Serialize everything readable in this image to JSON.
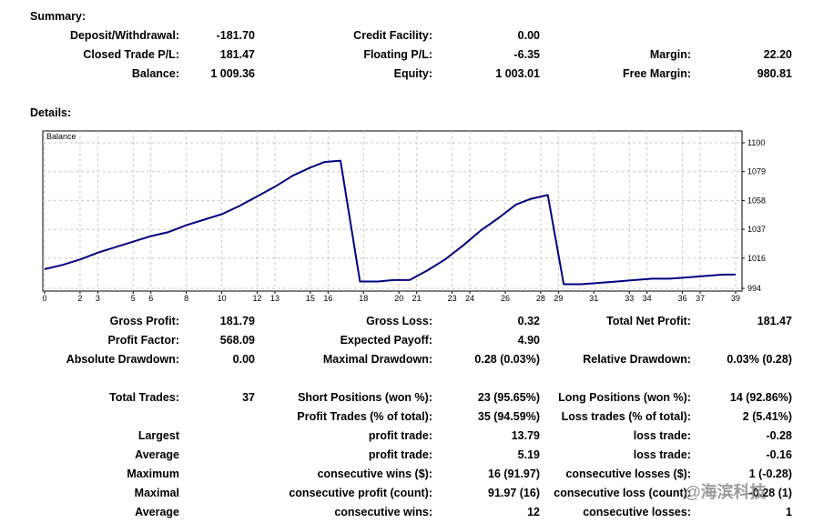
{
  "summary": {
    "heading": "Summary:",
    "deposit_label": "Deposit/Withdrawal:",
    "deposit_value": "-181.70",
    "credit_label": "Credit Facility:",
    "credit_value": "0.00",
    "closed_label": "Closed Trade P/L:",
    "closed_value": "181.47",
    "floating_label": "Floating P/L:",
    "floating_value": "-6.35",
    "margin_label": "Margin:",
    "margin_value": "22.20",
    "balance_label": "Balance:",
    "balance_value": "1 009.36",
    "equity_label": "Equity:",
    "equity_value": "1 003.01",
    "free_margin_label": "Free Margin:",
    "free_margin_value": "980.81"
  },
  "details": {
    "heading": "Details:"
  },
  "chart_data": {
    "type": "line",
    "title": "Balance",
    "x_ticks": [
      "0",
      "2",
      "3",
      "5",
      "6",
      "8",
      "10",
      "12",
      "13",
      "15",
      "16",
      "18",
      "20",
      "21",
      "23",
      "24",
      "26",
      "28",
      "29",
      "31",
      "33",
      "34",
      "36",
      "37",
      "39"
    ],
    "y_ticks": [
      "1100",
      "1079",
      "1058",
      "1037",
      "1016",
      "994"
    ],
    "ylim": [
      994,
      1100
    ],
    "xlim": [
      0,
      39
    ],
    "grid": true,
    "series": [
      {
        "color": "#000080",
        "points": [
          [
            0,
            1008
          ],
          [
            1,
            1011
          ],
          [
            2,
            1015
          ],
          [
            3,
            1020
          ],
          [
            4,
            1024
          ],
          [
            5,
            1028
          ],
          [
            6,
            1032
          ],
          [
            7,
            1035
          ],
          [
            8,
            1040
          ],
          [
            9,
            1044
          ],
          [
            10,
            1048
          ],
          [
            11,
            1054
          ],
          [
            12,
            1061
          ],
          [
            13,
            1068
          ],
          [
            14,
            1076
          ],
          [
            15,
            1082
          ],
          [
            15.8,
            1086
          ],
          [
            16.7,
            1087
          ],
          [
            17.8,
            999
          ],
          [
            18.8,
            999
          ],
          [
            19.7,
            1000
          ],
          [
            20.6,
            1000
          ],
          [
            21.6,
            1007
          ],
          [
            22.6,
            1015
          ],
          [
            23.6,
            1025
          ],
          [
            24.6,
            1036
          ],
          [
            25.6,
            1045
          ],
          [
            26.6,
            1055
          ],
          [
            27.4,
            1059
          ],
          [
            28.4,
            1062
          ],
          [
            29.3,
            997
          ],
          [
            30.3,
            997
          ],
          [
            31.3,
            998
          ],
          [
            32.3,
            999
          ],
          [
            33.3,
            1000
          ],
          [
            34.3,
            1001
          ],
          [
            35.3,
            1001
          ],
          [
            36.3,
            1002
          ],
          [
            37.3,
            1003
          ],
          [
            38.3,
            1004
          ],
          [
            39,
            1004
          ]
        ]
      }
    ]
  },
  "stats": {
    "gross_profit_label": "Gross Profit:",
    "gross_profit_value": "181.79",
    "gross_loss_label": "Gross Loss:",
    "gross_loss_value": "0.32",
    "total_net_label": "Total Net Profit:",
    "total_net_value": "181.47",
    "profit_factor_label": "Profit Factor:",
    "profit_factor_value": "568.09",
    "expected_payoff_label": "Expected Payoff:",
    "expected_payoff_value": "4.90",
    "abs_dd_label": "Absolute Drawdown:",
    "abs_dd_value": "0.00",
    "max_dd_label": "Maximal Drawdown:",
    "max_dd_value": "0.28 (0.03%)",
    "rel_dd_label": "Relative Drawdown:",
    "rel_dd_value": "0.03% (0.28)",
    "total_trades_label": "Total Trades:",
    "total_trades_value": "37",
    "short_label": "Short Positions (won %):",
    "short_value": "23 (95.65%)",
    "long_label": "Long Positions (won %):",
    "long_value": "14 (92.86%)",
    "profit_trades_label": "Profit Trades (% of total):",
    "profit_trades_value": "35 (94.59%)",
    "loss_trades_label": "Loss trades (% of total):",
    "loss_trades_value": "2 (5.41%)",
    "largest_label": "Largest",
    "largest_profit_label": "profit trade:",
    "largest_profit_value": "13.79",
    "largest_loss_label": "loss trade:",
    "largest_loss_value": "-0.28",
    "average_label": "Average",
    "average_profit_label": "profit trade:",
    "average_profit_value": "5.19",
    "average_loss_label": "loss trade:",
    "average_loss_value": "-0.16",
    "maximum_label": "Maximum",
    "max_cons_wins_label": "consecutive wins ($):",
    "max_cons_wins_value": "16 (91.97)",
    "max_cons_losses_label": "consecutive losses ($):",
    "max_cons_losses_value": "1 (-0.28)",
    "maximal_label": "Maximal",
    "maximal_profit_label": "consecutive profit (count):",
    "maximal_profit_value": "91.97 (16)",
    "maximal_loss_label": "consecutive loss (count):",
    "maximal_loss_value": "-0.28 (1)",
    "average2_label": "Average",
    "avg_cons_wins_label": "consecutive wins:",
    "avg_cons_wins_value": "12",
    "avg_cons_losses_label": "consecutive losses:",
    "avg_cons_losses_value": "1"
  },
  "watermark": {
    "text": "@海滨科技"
  }
}
